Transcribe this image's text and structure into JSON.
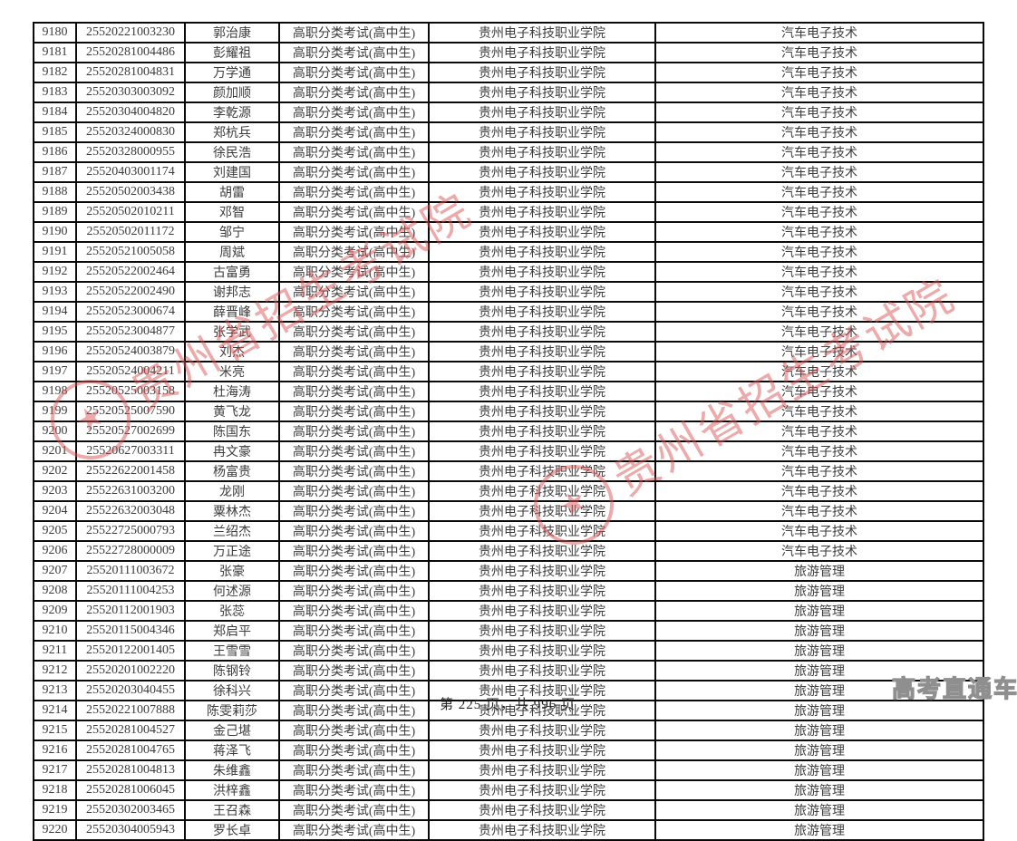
{
  "page": {
    "footer_text": "第 225 页，共 996 页",
    "brand_watermark": "高考直通车",
    "stamp": {
      "text": "贵州省招生考试院",
      "color": "#d95050"
    },
    "brand_color": "#8f8f8f"
  },
  "table": {
    "rows": [
      [
        "9180",
        "25520221003230",
        "郭治康",
        "高职分类考试(高中生)",
        "贵州电子科技职业学院",
        "汽车电子技术"
      ],
      [
        "9181",
        "25520281004486",
        "彭耀祖",
        "高职分类考试(高中生)",
        "贵州电子科技职业学院",
        "汽车电子技术"
      ],
      [
        "9182",
        "25520281004831",
        "万学通",
        "高职分类考试(高中生)",
        "贵州电子科技职业学院",
        "汽车电子技术"
      ],
      [
        "9183",
        "25520303003092",
        "颜加顺",
        "高职分类考试(高中生)",
        "贵州电子科技职业学院",
        "汽车电子技术"
      ],
      [
        "9184",
        "25520304004820",
        "李乾源",
        "高职分类考试(高中生)",
        "贵州电子科技职业学院",
        "汽车电子技术"
      ],
      [
        "9185",
        "25520324000830",
        "郑杭兵",
        "高职分类考试(高中生)",
        "贵州电子科技职业学院",
        "汽车电子技术"
      ],
      [
        "9186",
        "25520328000955",
        "徐民浩",
        "高职分类考试(高中生)",
        "贵州电子科技职业学院",
        "汽车电子技术"
      ],
      [
        "9187",
        "25520403001174",
        "刘建国",
        "高职分类考试(高中生)",
        "贵州电子科技职业学院",
        "汽车电子技术"
      ],
      [
        "9188",
        "25520502003438",
        "胡雷",
        "高职分类考试(高中生)",
        "贵州电子科技职业学院",
        "汽车电子技术"
      ],
      [
        "9189",
        "25520502010211",
        "邓智",
        "高职分类考试(高中生)",
        "贵州电子科技职业学院",
        "汽车电子技术"
      ],
      [
        "9190",
        "25520502011172",
        "邹宁",
        "高职分类考试(高中生)",
        "贵州电子科技职业学院",
        "汽车电子技术"
      ],
      [
        "9191",
        "25520521005058",
        "周斌",
        "高职分类考试(高中生)",
        "贵州电子科技职业学院",
        "汽车电子技术"
      ],
      [
        "9192",
        "25520522002464",
        "古富勇",
        "高职分类考试(高中生)",
        "贵州电子科技职业学院",
        "汽车电子技术"
      ],
      [
        "9193",
        "25520522002490",
        "谢邦志",
        "高职分类考试(高中生)",
        "贵州电子科技职业学院",
        "汽车电子技术"
      ],
      [
        "9194",
        "25520523000674",
        "薛晋峰",
        "高职分类考试(高中生)",
        "贵州电子科技职业学院",
        "汽车电子技术"
      ],
      [
        "9195",
        "25520523004877",
        "张学武",
        "高职分类考试(高中生)",
        "贵州电子科技职业学院",
        "汽车电子技术"
      ],
      [
        "9196",
        "25520524003879",
        "刘杰",
        "高职分类考试(高中生)",
        "贵州电子科技职业学院",
        "汽车电子技术"
      ],
      [
        "9197",
        "25520524004211",
        "米亮",
        "高职分类考试(高中生)",
        "贵州电子科技职业学院",
        "汽车电子技术"
      ],
      [
        "9198",
        "25520525003158",
        "杜海涛",
        "高职分类考试(高中生)",
        "贵州电子科技职业学院",
        "汽车电子技术"
      ],
      [
        "9199",
        "25520525007590",
        "黄飞龙",
        "高职分类考试(高中生)",
        "贵州电子科技职业学院",
        "汽车电子技术"
      ],
      [
        "9200",
        "25520527002699",
        "陈国东",
        "高职分类考试(高中生)",
        "贵州电子科技职业学院",
        "汽车电子技术"
      ],
      [
        "9201",
        "25520627003311",
        "冉文豪",
        "高职分类考试(高中生)",
        "贵州电子科技职业学院",
        "汽车电子技术"
      ],
      [
        "9202",
        "25522622001458",
        "杨富贵",
        "高职分类考试(高中生)",
        "贵州电子科技职业学院",
        "汽车电子技术"
      ],
      [
        "9203",
        "25522631003200",
        "龙刚",
        "高职分类考试(高中生)",
        "贵州电子科技职业学院",
        "汽车电子技术"
      ],
      [
        "9204",
        "25522632003048",
        "粟林杰",
        "高职分类考试(高中生)",
        "贵州电子科技职业学院",
        "汽车电子技术"
      ],
      [
        "9205",
        "25522725000793",
        "兰绍杰",
        "高职分类考试(高中生)",
        "贵州电子科技职业学院",
        "汽车电子技术"
      ],
      [
        "9206",
        "25522728000009",
        "万正途",
        "高职分类考试(高中生)",
        "贵州电子科技职业学院",
        "汽车电子技术"
      ],
      [
        "9207",
        "25520111003672",
        "张豪",
        "高职分类考试(高中生)",
        "贵州电子科技职业学院",
        "旅游管理"
      ],
      [
        "9208",
        "25520111004253",
        "何述源",
        "高职分类考试(高中生)",
        "贵州电子科技职业学院",
        "旅游管理"
      ],
      [
        "9209",
        "25520112001903",
        "张蕊",
        "高职分类考试(高中生)",
        "贵州电子科技职业学院",
        "旅游管理"
      ],
      [
        "9210",
        "25520115004346",
        "郑启平",
        "高职分类考试(高中生)",
        "贵州电子科技职业学院",
        "旅游管理"
      ],
      [
        "9211",
        "25520122001405",
        "王雪雪",
        "高职分类考试(高中生)",
        "贵州电子科技职业学院",
        "旅游管理"
      ],
      [
        "9212",
        "25520201002220",
        "陈钢铃",
        "高职分类考试(高中生)",
        "贵州电子科技职业学院",
        "旅游管理"
      ],
      [
        "9213",
        "25520203040455",
        "徐科兴",
        "高职分类考试(高中生)",
        "贵州电子科技职业学院",
        "旅游管理"
      ],
      [
        "9214",
        "25520221007888",
        "陈雯莉莎",
        "高职分类考试(高中生)",
        "贵州电子科技职业学院",
        "旅游管理"
      ],
      [
        "9215",
        "25520281004527",
        "金己堪",
        "高职分类考试(高中生)",
        "贵州电子科技职业学院",
        "旅游管理"
      ],
      [
        "9216",
        "25520281004765",
        "蒋泽飞",
        "高职分类考试(高中生)",
        "贵州电子科技职业学院",
        "旅游管理"
      ],
      [
        "9217",
        "25520281004813",
        "朱维鑫",
        "高职分类考试(高中生)",
        "贵州电子科技职业学院",
        "旅游管理"
      ],
      [
        "9218",
        "25520281006045",
        "洪梓鑫",
        "高职分类考试(高中生)",
        "贵州电子科技职业学院",
        "旅游管理"
      ],
      [
        "9219",
        "25520302003465",
        "王召森",
        "高职分类考试(高中生)",
        "贵州电子科技职业学院",
        "旅游管理"
      ],
      [
        "9220",
        "25520304005943",
        "罗长卓",
        "高职分类考试(高中生)",
        "贵州电子科技职业学院",
        "旅游管理"
      ]
    ]
  }
}
